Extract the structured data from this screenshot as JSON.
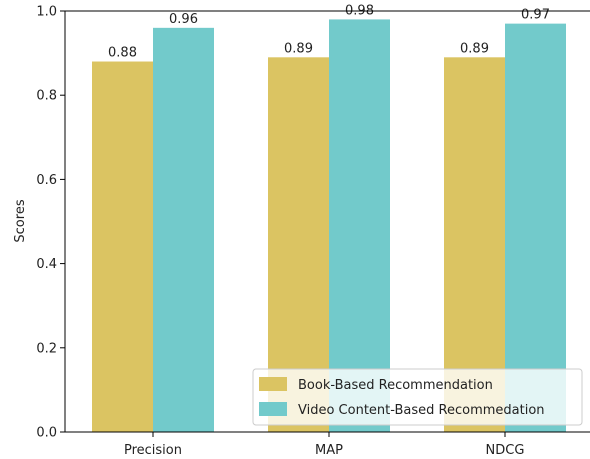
{
  "chart_data": {
    "type": "bar",
    "title": "",
    "xlabel": "",
    "ylabel": "Scores",
    "categories": [
      "Precision",
      "MAP",
      "NDCG"
    ],
    "series": [
      {
        "name": "Book-Based Recommendation",
        "values": [
          0.88,
          0.89,
          0.89
        ],
        "color": "#dbc462"
      },
      {
        "name": "Video Content-Based Recommedation",
        "values": [
          0.96,
          0.98,
          0.97
        ],
        "color": "#72cacb"
      }
    ],
    "data_labels": [
      [
        "0.88",
        "0.89",
        "0.89"
      ],
      [
        "0.96",
        "0.98",
        "0.97"
      ]
    ],
    "ylim": [
      0,
      1.0
    ],
    "yticks": [
      "0.0",
      "0.2",
      "0.4",
      "0.6",
      "0.8",
      "1.0"
    ],
    "grid": false,
    "legend_position": "lower-right"
  }
}
